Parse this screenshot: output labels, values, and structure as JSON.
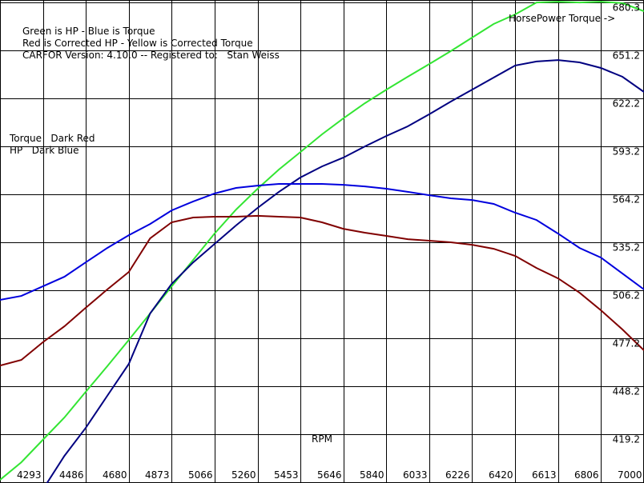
{
  "chart_data": {
    "type": "line",
    "x": [
      4100,
      4196,
      4293,
      4390,
      4486,
      4583,
      4680,
      4776,
      4873,
      4970,
      5066,
      5163,
      5260,
      5356,
      5453,
      5550,
      5646,
      5743,
      5840,
      5936,
      6033,
      6130,
      6226,
      6323,
      6420,
      6516,
      6613,
      6710,
      6806,
      6903,
      7000
    ],
    "series": [
      {
        "color": "#33e533",
        "values": [
          391.6,
          402.2,
          415.8,
          429.3,
          444.8,
          460.3,
          476.2,
          492.2,
          508.6,
          524.6,
          540.5,
          555.0,
          567.6,
          579.2,
          589.8,
          600.5,
          610.1,
          619.3,
          627.5,
          635.3,
          643.0,
          650.8,
          659.0,
          667.2,
          673.0,
          680.2,
          680.7,
          680.2,
          680.7,
          679.8,
          674.9
        ]
      },
      {
        "color": "#000080",
        "values": [
          null,
          null,
          385.8,
          406.1,
          423.0,
          442.4,
          461.7,
          492.2,
          510.1,
          523.1,
          534.2,
          545.4,
          556.0,
          565.7,
          574.4,
          581.1,
          586.4,
          593.2,
          599.5,
          605.3,
          612.6,
          620.3,
          627.5,
          634.8,
          642.1,
          644.5,
          645.4,
          644.0,
          640.6,
          635.3,
          626.1
        ]
      },
      {
        "color": "#0000dd",
        "values": [
          500.4,
          502.8,
          508.6,
          514.4,
          523.1,
          531.8,
          539.5,
          546.3,
          554.5,
          559.9,
          564.7,
          568.1,
          569.5,
          570.5,
          570.5,
          570.5,
          570.0,
          569.0,
          567.6,
          565.7,
          563.7,
          561.8,
          560.8,
          558.4,
          553.1,
          548.7,
          540.5,
          531.8,
          526.0,
          516.3,
          506.7
        ]
      },
      {
        "color": "#800000",
        "values": [
          460.7,
          464.1,
          474.8,
          484.4,
          495.6,
          506.7,
          517.3,
          537.6,
          547.3,
          550.2,
          550.7,
          550.7,
          551.2,
          550.7,
          550.2,
          547.3,
          543.4,
          541.0,
          539.1,
          537.1,
          536.2,
          535.2,
          533.7,
          531.3,
          527.0,
          519.7,
          513.4,
          504.7,
          494.1,
          482.5,
          469.9
        ]
      }
    ],
    "xlim": [
      4100,
      7000
    ],
    "ylim": [
      389.7,
      681.7
    ],
    "xticks": [
      4293,
      4486,
      4680,
      4873,
      5066,
      5260,
      5453,
      5646,
      5840,
      6033,
      6226,
      6420,
      6613,
      6806,
      7000
    ],
    "yticks": [
      680.3,
      651.2,
      622.2,
      593.2,
      564.2,
      535.2,
      506.2,
      477.2,
      448.2,
      419.2
    ],
    "xlabel": "RPM",
    "annotations": [
      "Green is HP - Blue is Torque",
      "Red is Corrected HP - Yellow is Corrected Torque",
      "CARFOR Version: 4.10.0 -- Registered to:   Stan Weiss",
      "Torque   Dark Red",
      "HP   Dark Blue",
      "HorsePower Torque ->"
    ],
    "grid": true
  }
}
